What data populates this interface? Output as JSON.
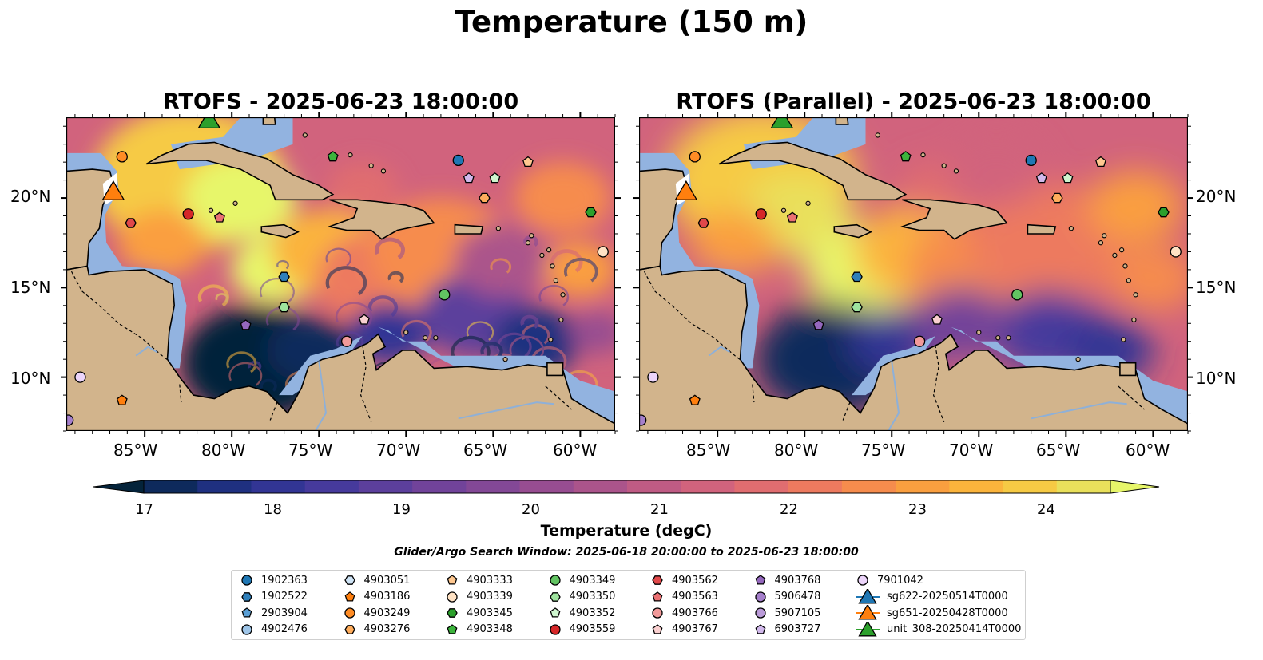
{
  "figure": {
    "title": "Temperature (150 m)",
    "search_window": "Glider/Argo Search Window: 2025-06-18 20:00:00 to 2025-06-23 18:00:00"
  },
  "maps": [
    {
      "title": "RTOFS - 2025-06-23 18:00:00",
      "variant": "rtofs"
    },
    {
      "title": "RTOFS (Parallel) - 2025-06-23 18:00:00",
      "variant": "parallel"
    }
  ],
  "axes": {
    "lon_range": [
      -89.5,
      -58.0
    ],
    "lat_range": [
      7.0,
      24.5
    ],
    "lon_ticks": [
      "85°W",
      "80°W",
      "75°W",
      "70°W",
      "65°W",
      "60°W"
    ],
    "lat_ticks": [
      "20°N",
      "15°N",
      "10°N"
    ]
  },
  "colorbar": {
    "label": "Temperature (degC)",
    "ticks": [
      "17",
      "18",
      "19",
      "20",
      "21",
      "22",
      "23",
      "24"
    ],
    "range": [
      16.5,
      24.5
    ],
    "step": 0.5,
    "colors": [
      "#04233a",
      "#0e2a5c",
      "#1f3080",
      "#323594",
      "#463a9c",
      "#5c3f9c",
      "#71439a",
      "#834896",
      "#974d91",
      "#ab548b",
      "#bf5b84",
      "#d1637d",
      "#e06d70",
      "#ed7a5f",
      "#f68c4d",
      "#fa9f3f",
      "#fbb43c",
      "#f6ca44",
      "#e9e05b",
      "#e7f66a"
    ],
    "land_color": "#d2b48c",
    "shelf_color": "#92b3e0"
  },
  "legend": {
    "items": [
      {
        "label": "1902363",
        "marker": "circle",
        "color": "#1f77b4"
      },
      {
        "label": "1902522",
        "marker": "hexagon",
        "color": "#2f7fba"
      },
      {
        "label": "2903904",
        "marker": "pentagon",
        "color": "#5ba0d6"
      },
      {
        "label": "4902476",
        "marker": "circle",
        "color": "#9ec5e8"
      },
      {
        "label": "4903051",
        "marker": "hexagon",
        "color": "#cfe4f6"
      },
      {
        "label": "4903186",
        "marker": "pentagon",
        "color": "#ff7f0e"
      },
      {
        "label": "4903249",
        "marker": "circle",
        "color": "#ff8c25"
      },
      {
        "label": "4903276",
        "marker": "hexagon",
        "color": "#ffad5c"
      },
      {
        "label": "4903333",
        "marker": "pentagon",
        "color": "#ffc890"
      },
      {
        "label": "4903339",
        "marker": "circle",
        "color": "#ffe2c4"
      },
      {
        "label": "4903345",
        "marker": "hexagon",
        "color": "#2ca02c"
      },
      {
        "label": "4903348",
        "marker": "pentagon",
        "color": "#3cb43c"
      },
      {
        "label": "4903349",
        "marker": "circle",
        "color": "#62c462"
      },
      {
        "label": "4903350",
        "marker": "hexagon",
        "color": "#9ee39e"
      },
      {
        "label": "4903352",
        "marker": "pentagon",
        "color": "#cff6cf"
      },
      {
        "label": "4903559",
        "marker": "circle",
        "color": "#d62728"
      },
      {
        "label": "4903562",
        "marker": "hexagon",
        "color": "#e0484a"
      },
      {
        "label": "4903563",
        "marker": "pentagon",
        "color": "#ea7072"
      },
      {
        "label": "4903766",
        "marker": "circle",
        "color": "#f29a9a"
      },
      {
        "label": "4903767",
        "marker": "pentagon",
        "color": "#fad0d0"
      },
      {
        "label": "4903768",
        "marker": "pentagon",
        "color": "#9467bd"
      },
      {
        "label": "5906478",
        "marker": "circle",
        "color": "#a57fcb"
      },
      {
        "label": "5907105",
        "marker": "circle",
        "color": "#bb9bd9"
      },
      {
        "label": "6903727",
        "marker": "pentagon",
        "color": "#d2b9ec"
      },
      {
        "label": "7901042",
        "marker": "circle",
        "color": "#ecd4fa"
      },
      {
        "label": "sg622-20250514T0000",
        "marker": "triangle",
        "color": "#1f77b4"
      },
      {
        "label": "sg651-20250428T0000",
        "marker": "triangle",
        "color": "#ff7f0e"
      },
      {
        "label": "unit_308-20250414T0000",
        "marker": "triangle",
        "color": "#2ca02c"
      }
    ]
  },
  "platforms": [
    {
      "id": "1902363",
      "lon": -67.0,
      "lat": 22.1
    },
    {
      "id": "1902522",
      "lon": -77.0,
      "lat": 15.6
    },
    {
      "id": "4903350",
      "lon": -77.0,
      "lat": 13.9
    },
    {
      "id": "4903345",
      "lon": -59.4,
      "lat": 19.2
    },
    {
      "id": "4903348",
      "lon": -74.2,
      "lat": 22.3
    },
    {
      "id": "4903349",
      "lon": -67.8,
      "lat": 14.6
    },
    {
      "id": "4903352",
      "lon": -64.9,
      "lat": 21.1
    },
    {
      "id": "4903333",
      "lon": -63.0,
      "lat": 22.0
    },
    {
      "id": "4903276",
      "lon": -65.5,
      "lat": 20.0
    },
    {
      "id": "4903339",
      "lon": -58.7,
      "lat": 17.0
    },
    {
      "id": "4903249",
      "lon": -86.3,
      "lat": 22.3
    },
    {
      "id": "4903186",
      "lon": -86.3,
      "lat": 8.7
    },
    {
      "id": "4903559",
      "lon": -82.5,
      "lat": 19.1
    },
    {
      "id": "4903562",
      "lon": -85.8,
      "lat": 18.6
    },
    {
      "id": "4903563",
      "lon": -80.7,
      "lat": 18.9
    },
    {
      "id": "4903766",
      "lon": -73.4,
      "lat": 12.0
    },
    {
      "id": "4903767",
      "lon": -72.4,
      "lat": 13.2
    },
    {
      "id": "4903768",
      "lon": -79.2,
      "lat": 12.9
    },
    {
      "id": "6903727",
      "lon": -66.4,
      "lat": 21.1
    },
    {
      "id": "5906478",
      "lon": -89.4,
      "lat": 7.6
    },
    {
      "id": "7901042",
      "lon": -88.7,
      "lat": 10.0
    },
    {
      "id": "sg651-20250428T0000",
      "lon": -86.8,
      "lat": 20.4,
      "big": true
    },
    {
      "id": "unit_308-20250414T0000",
      "lon": -81.3,
      "lat": 24.4,
      "big": true
    }
  ]
}
